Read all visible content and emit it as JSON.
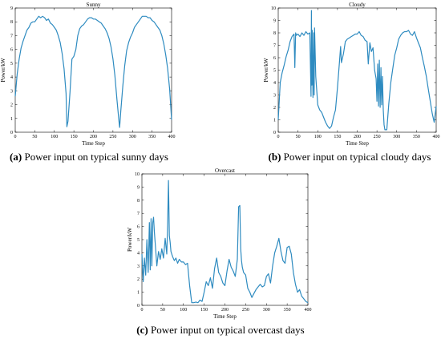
{
  "chart_data": [
    {
      "id": "a",
      "type": "line",
      "title": "Sunny",
      "xlabel": "Time Step",
      "ylabel": "Power/kW",
      "xlim": [
        0,
        400
      ],
      "ylim": [
        0,
        9
      ],
      "xticks": [
        0,
        50,
        100,
        150,
        200,
        250,
        300,
        350,
        400
      ],
      "yticks": [
        0,
        1,
        2,
        3,
        4,
        5,
        6,
        7,
        8,
        9
      ],
      "color": "#2e8bc0",
      "grid": false,
      "series": [
        {
          "x": [
            0,
            5,
            10,
            15,
            20,
            25,
            30,
            35,
            40,
            45,
            50,
            55,
            60,
            65,
            70,
            75,
            80,
            85,
            90,
            95,
            100,
            105,
            110,
            115,
            120,
            125,
            130,
            132,
            135,
            140,
            145,
            150,
            155,
            160,
            165,
            170,
            175,
            180,
            185,
            190,
            195,
            200,
            205,
            210,
            215,
            220,
            225,
            230,
            235,
            240,
            245,
            250,
            255,
            260,
            265,
            267,
            270,
            275,
            280,
            285,
            290,
            295,
            300,
            305,
            310,
            315,
            320,
            325,
            330,
            335,
            340,
            345,
            350,
            355,
            360,
            365,
            370,
            375,
            380,
            385,
            390,
            395,
            400
          ],
          "y": [
            2.6,
            4.2,
            5.3,
            6.1,
            6.6,
            7.0,
            7.4,
            7.6,
            7.9,
            8.0,
            8.0,
            8.2,
            8.4,
            8.3,
            8.4,
            8.3,
            8.1,
            8.2,
            7.9,
            7.8,
            7.6,
            7.4,
            7.0,
            6.5,
            5.7,
            4.6,
            2.8,
            0.4,
            0.8,
            2.9,
            5.3,
            5.5,
            6.0,
            7.0,
            7.5,
            7.7,
            7.8,
            8.0,
            8.2,
            8.3,
            8.3,
            8.2,
            8.2,
            8.1,
            8.0,
            7.9,
            7.7,
            7.5,
            7.2,
            6.8,
            6.2,
            5.3,
            4.1,
            2.4,
            0.9,
            0.35,
            1.5,
            3.3,
            4.8,
            5.9,
            6.5,
            6.9,
            7.2,
            7.6,
            7.8,
            8.0,
            8.2,
            8.4,
            8.4,
            8.4,
            8.3,
            8.3,
            8.1,
            8.0,
            7.8,
            7.6,
            7.4,
            7.0,
            6.4,
            5.6,
            4.6,
            3.1,
            0.9
          ]
        }
      ]
    },
    {
      "id": "b",
      "type": "line",
      "title": "Cloudy",
      "xlabel": "Time Step",
      "ylabel": "Power/kW",
      "xlim": [
        0,
        400
      ],
      "ylim": [
        0,
        10
      ],
      "xticks": [
        0,
        50,
        100,
        150,
        200,
        250,
        300,
        350,
        400
      ],
      "yticks": [
        0,
        1,
        2,
        3,
        4,
        5,
        6,
        7,
        8,
        9,
        10
      ],
      "color": "#2e8bc0",
      "grid": false,
      "series": [
        {
          "x": [
            0,
            5,
            10,
            15,
            20,
            25,
            30,
            35,
            40,
            42,
            44,
            46,
            50,
            55,
            60,
            65,
            70,
            75,
            80,
            83,
            84,
            85,
            86,
            88,
            90,
            91,
            92,
            95,
            100,
            105,
            110,
            115,
            120,
            125,
            130,
            135,
            140,
            145,
            150,
            155,
            158,
            160,
            165,
            170,
            175,
            180,
            185,
            190,
            195,
            200,
            205,
            210,
            215,
            220,
            225,
            228,
            232,
            236,
            240,
            244,
            248,
            250,
            252,
            254,
            256,
            258,
            260,
            262,
            264,
            266,
            268,
            270,
            275,
            280,
            285,
            290,
            295,
            300,
            305,
            310,
            315,
            320,
            325,
            330,
            335,
            340,
            345,
            350,
            355,
            360,
            365,
            370,
            375,
            380,
            385,
            390,
            395,
            400
          ],
          "y": [
            1.0,
            4.0,
            4.8,
            5.4,
            6.1,
            6.6,
            7.3,
            7.7,
            7.9,
            5.2,
            8.0,
            7.8,
            7.9,
            7.7,
            8.0,
            7.8,
            8.1,
            7.9,
            8.0,
            2.9,
            9.8,
            3.8,
            8.2,
            2.8,
            8.0,
            3.0,
            8.4,
            4.5,
            2.2,
            1.8,
            1.6,
            1.2,
            0.8,
            0.5,
            0.3,
            0.5,
            1.2,
            1.8,
            3.6,
            5.6,
            6.9,
            5.6,
            6.3,
            7.3,
            7.5,
            7.6,
            7.7,
            7.8,
            7.9,
            7.9,
            8.1,
            7.8,
            7.7,
            7.4,
            7.3,
            5.5,
            7.2,
            6.5,
            6.8,
            5.0,
            4.3,
            2.5,
            5.5,
            2.1,
            5.8,
            2.0,
            5.2,
            2.2,
            4.5,
            1.8,
            0.6,
            0.2,
            0.2,
            2.3,
            4.0,
            5.1,
            6.2,
            6.8,
            7.5,
            7.8,
            8.0,
            8.1,
            8.1,
            8.2,
            7.9,
            7.8,
            8.1,
            7.6,
            7.2,
            6.8,
            6.0,
            5.3,
            4.5,
            3.5,
            2.5,
            1.5,
            0.8,
            2.1
          ]
        }
      ]
    },
    {
      "id": "c",
      "type": "line",
      "title": "Overcast",
      "xlabel": "Time Step",
      "ylabel": "Power/kW",
      "xlim": [
        0,
        400
      ],
      "ylim": [
        0,
        10
      ],
      "xticks": [
        0,
        50,
        100,
        150,
        200,
        250,
        300,
        350,
        400
      ],
      "yticks": [
        0,
        1,
        2,
        3,
        4,
        5,
        6,
        7,
        8,
        9,
        10
      ],
      "color": "#2e8bc0",
      "grid": false,
      "series": [
        {
          "x": [
            0,
            3,
            6,
            9,
            12,
            15,
            18,
            20,
            22,
            24,
            26,
            28,
            30,
            33,
            36,
            40,
            44,
            48,
            52,
            56,
            60,
            62,
            64,
            66,
            68,
            70,
            74,
            78,
            82,
            86,
            90,
            95,
            100,
            105,
            110,
            115,
            120,
            125,
            130,
            135,
            140,
            145,
            150,
            155,
            160,
            165,
            170,
            175,
            180,
            185,
            190,
            195,
            200,
            205,
            210,
            215,
            220,
            225,
            230,
            233,
            236,
            238,
            240,
            242,
            245,
            250,
            255,
            260,
            265,
            270,
            275,
            280,
            285,
            290,
            295,
            300,
            305,
            310,
            315,
            320,
            325,
            330,
            335,
            340,
            345,
            350,
            355,
            360,
            365,
            370,
            375,
            380,
            385,
            390,
            395,
            400
          ],
          "y": [
            3.9,
            1.8,
            3.6,
            2.3,
            5.0,
            2.5,
            6.3,
            2.7,
            6.6,
            3.0,
            6.3,
            6.7,
            5.6,
            4.3,
            3.0,
            4.1,
            3.5,
            4.3,
            3.6,
            5.1,
            3.9,
            6.2,
            9.5,
            5.3,
            4.8,
            4.1,
            3.7,
            3.4,
            3.6,
            3.2,
            3.5,
            3.3,
            3.3,
            3.1,
            3.2,
            1.5,
            0.2,
            0.2,
            0.25,
            0.2,
            0.4,
            0.3,
            1.0,
            1.8,
            1.5,
            2.1,
            1.3,
            2.8,
            3.6,
            2.5,
            2.2,
            1.7,
            1.5,
            2.6,
            3.5,
            2.9,
            2.6,
            2.2,
            3.5,
            7.5,
            7.6,
            4.3,
            3.4,
            2.9,
            2.5,
            2.3,
            1.3,
            1.0,
            0.6,
            0.9,
            1.2,
            1.4,
            1.6,
            1.4,
            1.5,
            2.2,
            2.4,
            1.7,
            3.0,
            4.0,
            4.5,
            5.1,
            4.1,
            3.4,
            3.2,
            4.4,
            4.5,
            3.9,
            2.5,
            1.6,
            1.0,
            1.2,
            0.7,
            0.5,
            0.3,
            0.2
          ]
        }
      ]
    }
  ],
  "captions": {
    "a": {
      "tag": "(a)",
      "text": " Power input on typical sunny days"
    },
    "b": {
      "tag": "(b)",
      "text": " Power input on typical cloudy days"
    },
    "c": {
      "tag": "(c)",
      "text": " Power input on typical overcast days"
    }
  }
}
